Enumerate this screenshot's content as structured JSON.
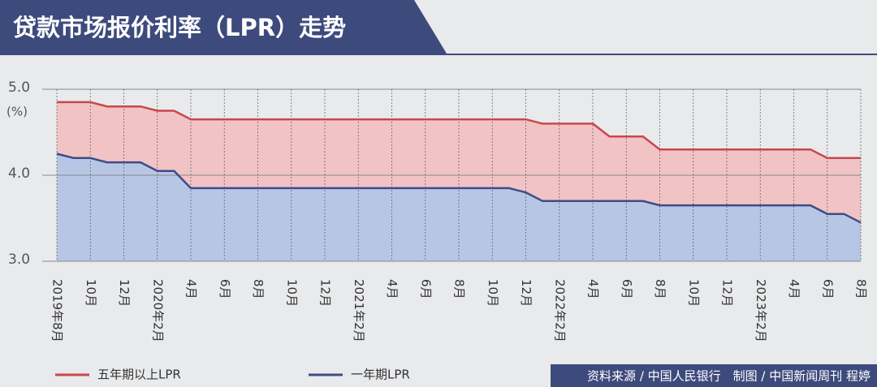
{
  "chart_data": {
    "type": "line",
    "title": "贷款市场报价利率（LPR）走势",
    "y_unit": "(%)",
    "categories": [
      "2019年8月",
      null,
      "10月",
      null,
      "12月",
      null,
      "2020年2月",
      null,
      "4月",
      null,
      "6月",
      null,
      "8月",
      null,
      "10月",
      null,
      "12月",
      null,
      "2021年2月",
      null,
      "4月",
      null,
      "6月",
      null,
      "8月",
      null,
      "10月",
      null,
      "12月",
      null,
      "2022年2月",
      null,
      "4月",
      null,
      "6月",
      null,
      "8月",
      null,
      "10月",
      null,
      "12月",
      null,
      "2023年2月",
      null,
      "4月",
      null,
      "6月",
      null,
      "8月"
    ],
    "series": [
      {
        "name": "五年期以上LPR",
        "color": "#c8474b",
        "fill": "#f1c3c5",
        "values": [
          4.85,
          4.85,
          4.85,
          4.8,
          4.8,
          4.8,
          4.75,
          4.75,
          4.65,
          4.65,
          4.65,
          4.65,
          4.65,
          4.65,
          4.65,
          4.65,
          4.65,
          4.65,
          4.65,
          4.65,
          4.65,
          4.65,
          4.65,
          4.65,
          4.65,
          4.65,
          4.65,
          4.65,
          4.65,
          4.6,
          4.6,
          4.6,
          4.6,
          4.45,
          4.45,
          4.45,
          4.3,
          4.3,
          4.3,
          4.3,
          4.3,
          4.3,
          4.3,
          4.3,
          4.3,
          4.3,
          4.2,
          4.2,
          4.2
        ]
      },
      {
        "name": "一年期LPR",
        "color": "#3d4c86",
        "fill": "#b8c6e6",
        "values": [
          4.25,
          4.2,
          4.2,
          4.15,
          4.15,
          4.15,
          4.05,
          4.05,
          3.85,
          3.85,
          3.85,
          3.85,
          3.85,
          3.85,
          3.85,
          3.85,
          3.85,
          3.85,
          3.85,
          3.85,
          3.85,
          3.85,
          3.85,
          3.85,
          3.85,
          3.85,
          3.85,
          3.85,
          3.8,
          3.7,
          3.7,
          3.7,
          3.7,
          3.7,
          3.7,
          3.7,
          3.65,
          3.65,
          3.65,
          3.65,
          3.65,
          3.65,
          3.65,
          3.65,
          3.65,
          3.65,
          3.55,
          3.55,
          3.45
        ]
      }
    ],
    "ylim": [
      3,
      5
    ],
    "yticks": [
      {
        "value": 3,
        "label": "3.0"
      },
      {
        "value": 4,
        "label": "4.0"
      },
      {
        "value": 5,
        "label": "5.0"
      }
    ],
    "source": "资料来源 / 中国人民银行　制图 / 中国新闻周刊  程婷"
  }
}
